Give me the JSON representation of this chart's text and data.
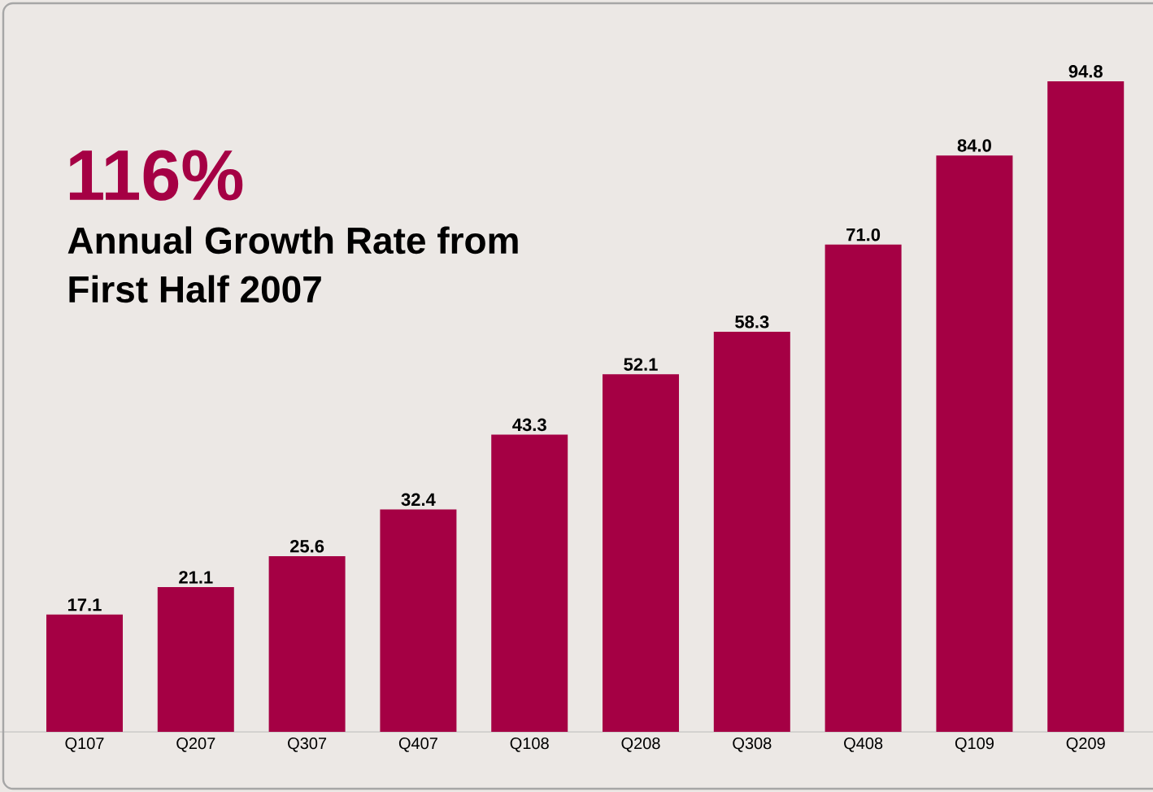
{
  "chart_data": {
    "type": "bar",
    "title": "116%",
    "subtitle": "Annual Growth Rate from First Half 2007",
    "categories": [
      "Q107",
      "Q207",
      "Q307",
      "Q407",
      "Q108",
      "Q208",
      "Q308",
      "Q408",
      "Q109",
      "Q209"
    ],
    "values": [
      17.1,
      21.1,
      25.6,
      32.4,
      43.3,
      52.1,
      58.3,
      71.0,
      84.0,
      94.8
    ],
    "value_labels": [
      "17.1",
      "21.1",
      "25.6",
      "32.4",
      "43.3",
      "52.1",
      "58.3",
      "71.0",
      "84.0",
      "94.8"
    ],
    "color": "#a50044"
  }
}
